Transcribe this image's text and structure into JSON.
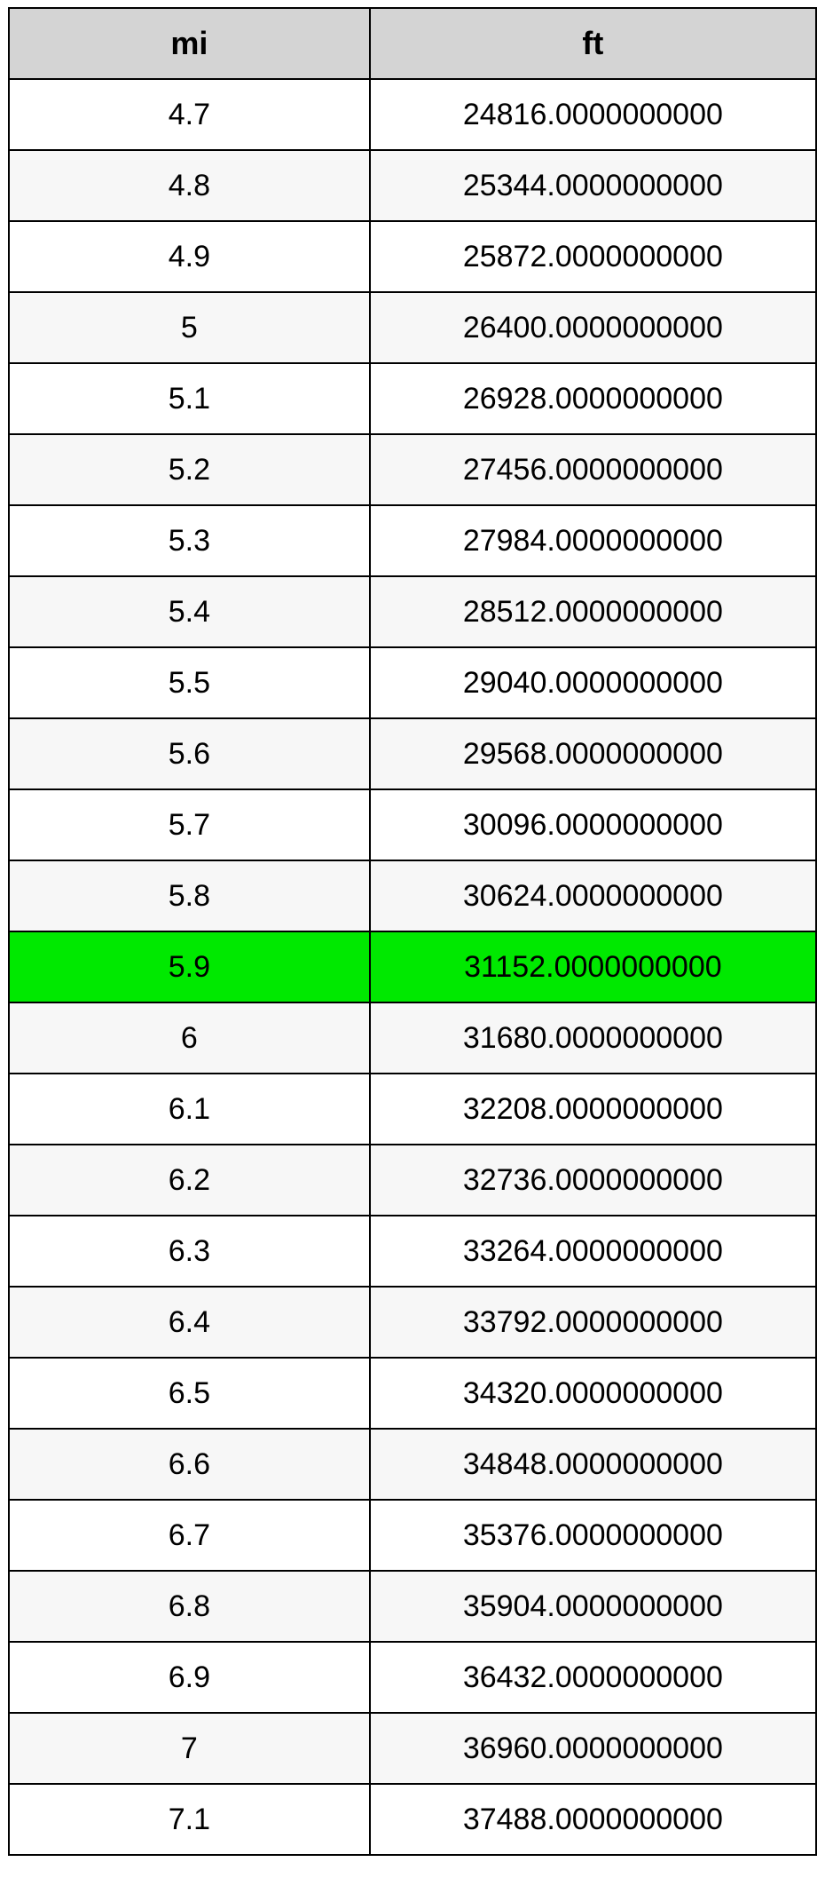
{
  "table": {
    "header_bg": "#d4d4d4",
    "row_alt_bg": "#f7f7f7",
    "row_bg": "#ffffff",
    "highlight_bg": "#00e900",
    "border_color": "#000000",
    "text_color": "#000000",
    "header_fontsize": 36,
    "cell_fontsize": 34,
    "columns": [
      {
        "key": "mi",
        "label": "mi"
      },
      {
        "key": "ft",
        "label": "ft"
      }
    ],
    "highlight_index": 12,
    "rows": [
      {
        "mi": "4.7",
        "ft": "24816.0000000000"
      },
      {
        "mi": "4.8",
        "ft": "25344.0000000000"
      },
      {
        "mi": "4.9",
        "ft": "25872.0000000000"
      },
      {
        "mi": "5",
        "ft": "26400.0000000000"
      },
      {
        "mi": "5.1",
        "ft": "26928.0000000000"
      },
      {
        "mi": "5.2",
        "ft": "27456.0000000000"
      },
      {
        "mi": "5.3",
        "ft": "27984.0000000000"
      },
      {
        "mi": "5.4",
        "ft": "28512.0000000000"
      },
      {
        "mi": "5.5",
        "ft": "29040.0000000000"
      },
      {
        "mi": "5.6",
        "ft": "29568.0000000000"
      },
      {
        "mi": "5.7",
        "ft": "30096.0000000000"
      },
      {
        "mi": "5.8",
        "ft": "30624.0000000000"
      },
      {
        "mi": "5.9",
        "ft": "31152.0000000000"
      },
      {
        "mi": "6",
        "ft": "31680.0000000000"
      },
      {
        "mi": "6.1",
        "ft": "32208.0000000000"
      },
      {
        "mi": "6.2",
        "ft": "32736.0000000000"
      },
      {
        "mi": "6.3",
        "ft": "33264.0000000000"
      },
      {
        "mi": "6.4",
        "ft": "33792.0000000000"
      },
      {
        "mi": "6.5",
        "ft": "34320.0000000000"
      },
      {
        "mi": "6.6",
        "ft": "34848.0000000000"
      },
      {
        "mi": "6.7",
        "ft": "35376.0000000000"
      },
      {
        "mi": "6.8",
        "ft": "35904.0000000000"
      },
      {
        "mi": "6.9",
        "ft": "36432.0000000000"
      },
      {
        "mi": "7",
        "ft": "36960.0000000000"
      },
      {
        "mi": "7.1",
        "ft": "37488.0000000000"
      }
    ]
  }
}
